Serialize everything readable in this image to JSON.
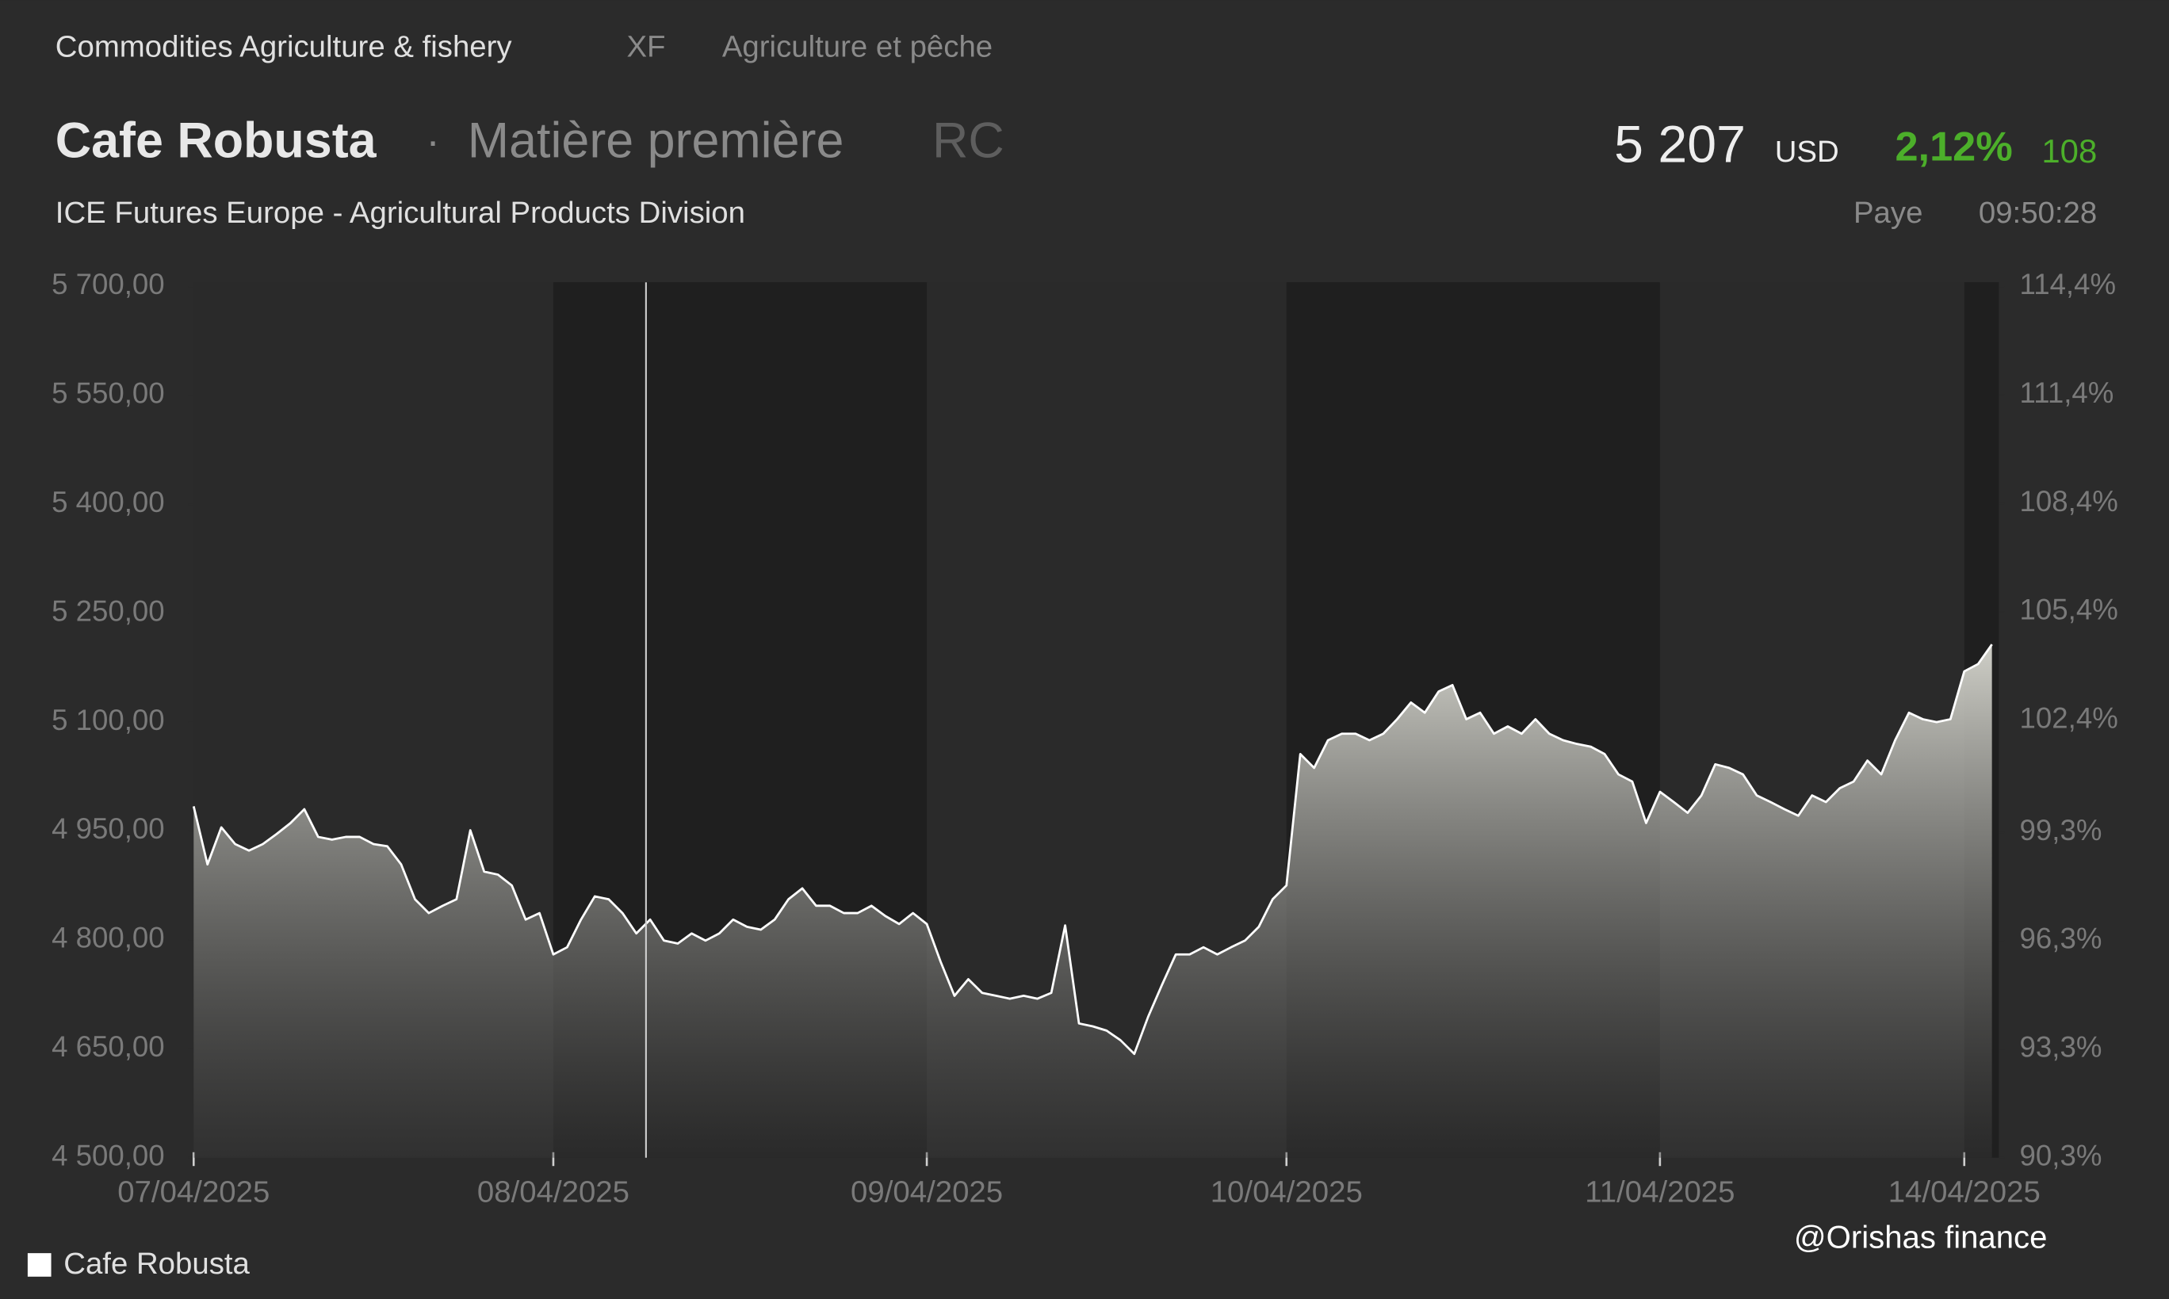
{
  "header": {
    "category": "Commodities Agriculture & fishery",
    "code": "XF",
    "category_fr": "Agriculture et pêche",
    "name": "Cafe Robusta",
    "separator": "·",
    "kind": "Matière première",
    "symbol": "RC",
    "price": "5 207",
    "currency": "USD",
    "change_pct": "2,12%",
    "change": "108",
    "exchange": "ICE Futures Europe - Agricultural Products Division",
    "country": "Paye",
    "time": "09:50:28"
  },
  "watermark": "@Orishas finance",
  "chart_data": {
    "type": "area",
    "series": [
      {
        "name": "Cafe Robusta",
        "color": "#ffffff",
        "values": [
          4984,
          4904,
          4955,
          4932,
          4923,
          4932,
          4946,
          4961,
          4980,
          4942,
          4938,
          4942,
          4942,
          4932,
          4929,
          4904,
          4856,
          4837,
          4847,
          4856,
          4951,
          4894,
          4890,
          4875,
          4828,
          4837,
          4780,
          4790,
          4828,
          4860,
          4856,
          4837,
          4809,
          4828,
          4799,
          4795,
          4809,
          4799,
          4809,
          4828,
          4818,
          4814,
          4828,
          4856,
          4871,
          4847,
          4847,
          4837,
          4837,
          4847,
          4833,
          4822,
          4837,
          4822,
          4770,
          4723,
          4746,
          4727,
          4723,
          4719,
          4723,
          4719,
          4727,
          4820,
          4685,
          4681,
          4675,
          4662,
          4643,
          4694,
          4738,
          4780,
          4780,
          4790,
          4780,
          4790,
          4799,
          4818,
          4856,
          4875,
          5056,
          5037,
          5075,
          5084,
          5084,
          5075,
          5084,
          5104,
          5127,
          5113,
          5142,
          5151,
          5104,
          5113,
          5084,
          5094,
          5084,
          5104,
          5084,
          5075,
          5070,
          5066,
          5056,
          5028,
          5018,
          4961,
          5004,
          4990,
          4975,
          4999,
          5042,
          5037,
          5028,
          4999,
          4990,
          4980,
          4971,
          4999,
          4990,
          5009,
          5018,
          5047,
          5028,
          5075,
          5113,
          5104,
          5100,
          5104,
          5170,
          5180,
          5207
        ]
      }
    ],
    "xlim": [
      0,
      130
    ],
    "xticks": [
      {
        "value": 0,
        "label": "07/04/2025"
      },
      {
        "value": 26,
        "label": "08/04/2025"
      },
      {
        "value": 53,
        "label": "09/04/2025"
      },
      {
        "value": 79,
        "label": "10/04/2025"
      },
      {
        "value": 106,
        "label": "11/04/2025"
      },
      {
        "value": 128,
        "label": "14/04/2025"
      }
    ],
    "ylim": [
      4500,
      5700
    ],
    "yticks": [
      {
        "value": 4500,
        "label": "4 500,00"
      },
      {
        "value": 4650,
        "label": "4 650,00"
      },
      {
        "value": 4800,
        "label": "4 800,00"
      },
      {
        "value": 4950,
        "label": "4 950,00"
      },
      {
        "value": 5100,
        "label": "5 100,00"
      },
      {
        "value": 5250,
        "label": "5 250,00"
      },
      {
        "value": 5400,
        "label": "5 400,00"
      },
      {
        "value": 5550,
        "label": "5 550,00"
      },
      {
        "value": 5700,
        "label": "5 700,00"
      }
    ],
    "y2lim": [
      90.3,
      114.4
    ],
    "y2ticks": [
      {
        "value": 90.3,
        "label": "90,3%"
      },
      {
        "value": 93.3,
        "label": "93,3%"
      },
      {
        "value": 96.3,
        "label": "96,3%"
      },
      {
        "value": 99.3,
        "label": "99,3%"
      },
      {
        "value": 102.4,
        "label": "102,4%"
      },
      {
        "value": 105.4,
        "label": "105,4%"
      },
      {
        "value": 108.4,
        "label": "108,4%"
      },
      {
        "value": 111.4,
        "label": "111,4%"
      },
      {
        "value": 114.4,
        "label": "114,4%"
      }
    ]
  }
}
